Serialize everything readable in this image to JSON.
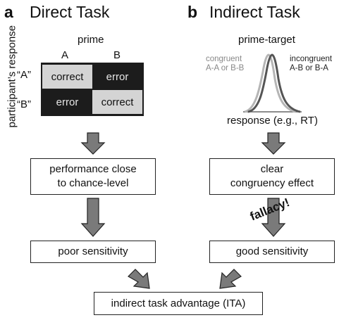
{
  "panel_a": {
    "letter": "a",
    "title": "Direct Task",
    "matrix": {
      "col_header": "prime",
      "col_labels": [
        "A",
        "B"
      ],
      "row_labels": [
        "“A”",
        "“B”"
      ],
      "row_axis_label": "participant’s response",
      "cells": [
        [
          "correct",
          "error"
        ],
        [
          "error",
          "correct"
        ]
      ]
    },
    "box1": "performance close to chance-level",
    "box1_lines": [
      "performance close",
      "to chance-level"
    ],
    "box2": "poor sensitivity"
  },
  "panel_b": {
    "letter": "b",
    "title": "Indirect Task",
    "curve_title": "prime-target",
    "congruent_label": [
      "congruent",
      "A-A or B-B"
    ],
    "incongruent_label": [
      "incongruent",
      "A-B or B-A"
    ],
    "response_label": "response (e.g., RT)",
    "box1_lines": [
      "clear",
      "congruency effect"
    ],
    "fallacy": "fallacy!",
    "box2": "good sensitivity"
  },
  "bottom_box": "indirect task advantage (ITA)",
  "colors": {
    "correct_cell": "#d4d4d4",
    "error_cell": "#1c1c1c",
    "arrow_fill": "#7a7a7a",
    "congruent_curve": "#b5b5b5",
    "incongruent_curve": "#555555"
  }
}
